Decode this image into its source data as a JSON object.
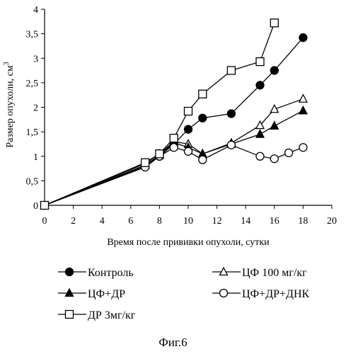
{
  "chart_data": {
    "type": "line",
    "xlabel": "Время после прививки опухоли, сутки",
    "ylabel": "Размер опухоли, см",
    "ylabel_superscript": "3",
    "xlim": [
      0,
      20
    ],
    "ylim": [
      0,
      4
    ],
    "x_ticks": [
      "0",
      "2",
      "4",
      "6",
      "8",
      "10",
      "12",
      "14",
      "16",
      "18",
      "20"
    ],
    "y_ticks": [
      "0",
      "0,5",
      "1",
      "1,5",
      "2",
      "2,5",
      "3",
      "3,5",
      "4"
    ],
    "grid": false,
    "legend_position": "bottom",
    "series": [
      {
        "name": "Контроль",
        "marker": "filled-circle",
        "points": [
          [
            0,
            0
          ],
          [
            7,
            0.8
          ],
          [
            8,
            1.0
          ],
          [
            9,
            1.25
          ],
          [
            10,
            1.55
          ],
          [
            11,
            1.78
          ],
          [
            13,
            1.87
          ],
          [
            15,
            2.45
          ],
          [
            16,
            2.75
          ],
          [
            18,
            3.42
          ]
        ]
      },
      {
        "name": "ЦФ 100 мг/кг",
        "marker": "open-triangle",
        "points": [
          [
            0,
            0
          ],
          [
            7,
            0.85
          ],
          [
            8,
            1.05
          ],
          [
            9,
            1.3
          ],
          [
            10,
            1.25
          ],
          [
            11,
            1.05
          ],
          [
            13,
            1.27
          ],
          [
            15,
            1.63
          ],
          [
            16,
            1.96
          ],
          [
            18,
            2.17
          ]
        ]
      },
      {
        "name": "ЦФ+ДР",
        "marker": "filled-triangle",
        "points": [
          [
            0,
            0
          ],
          [
            7,
            0.82
          ],
          [
            8,
            1.02
          ],
          [
            9,
            1.28
          ],
          [
            10,
            1.18
          ],
          [
            11,
            1.05
          ],
          [
            13,
            1.25
          ],
          [
            15,
            1.45
          ],
          [
            16,
            1.62
          ],
          [
            18,
            1.93
          ]
        ]
      },
      {
        "name": "ЦФ+ДР+ДНК",
        "marker": "open-circle",
        "points": [
          [
            0,
            0
          ],
          [
            7,
            0.78
          ],
          [
            8,
            1.0
          ],
          [
            9,
            1.18
          ],
          [
            10,
            1.1
          ],
          [
            11,
            0.93
          ],
          [
            13,
            1.23
          ],
          [
            15,
            1.0
          ],
          [
            16,
            0.95
          ],
          [
            17,
            1.07
          ],
          [
            18,
            1.18
          ]
        ]
      },
      {
        "name": "ДР 3мг/кг",
        "marker": "open-square",
        "points": [
          [
            0,
            0
          ],
          [
            7,
            0.87
          ],
          [
            8,
            1.05
          ],
          [
            9,
            1.37
          ],
          [
            10,
            1.92
          ],
          [
            11,
            2.27
          ],
          [
            13,
            2.75
          ],
          [
            15,
            2.93
          ],
          [
            16,
            3.72
          ]
        ]
      }
    ],
    "legend_layout": [
      [
        0,
        1
      ],
      [
        2,
        3
      ],
      [
        4
      ]
    ]
  },
  "caption": "Фиг.6"
}
